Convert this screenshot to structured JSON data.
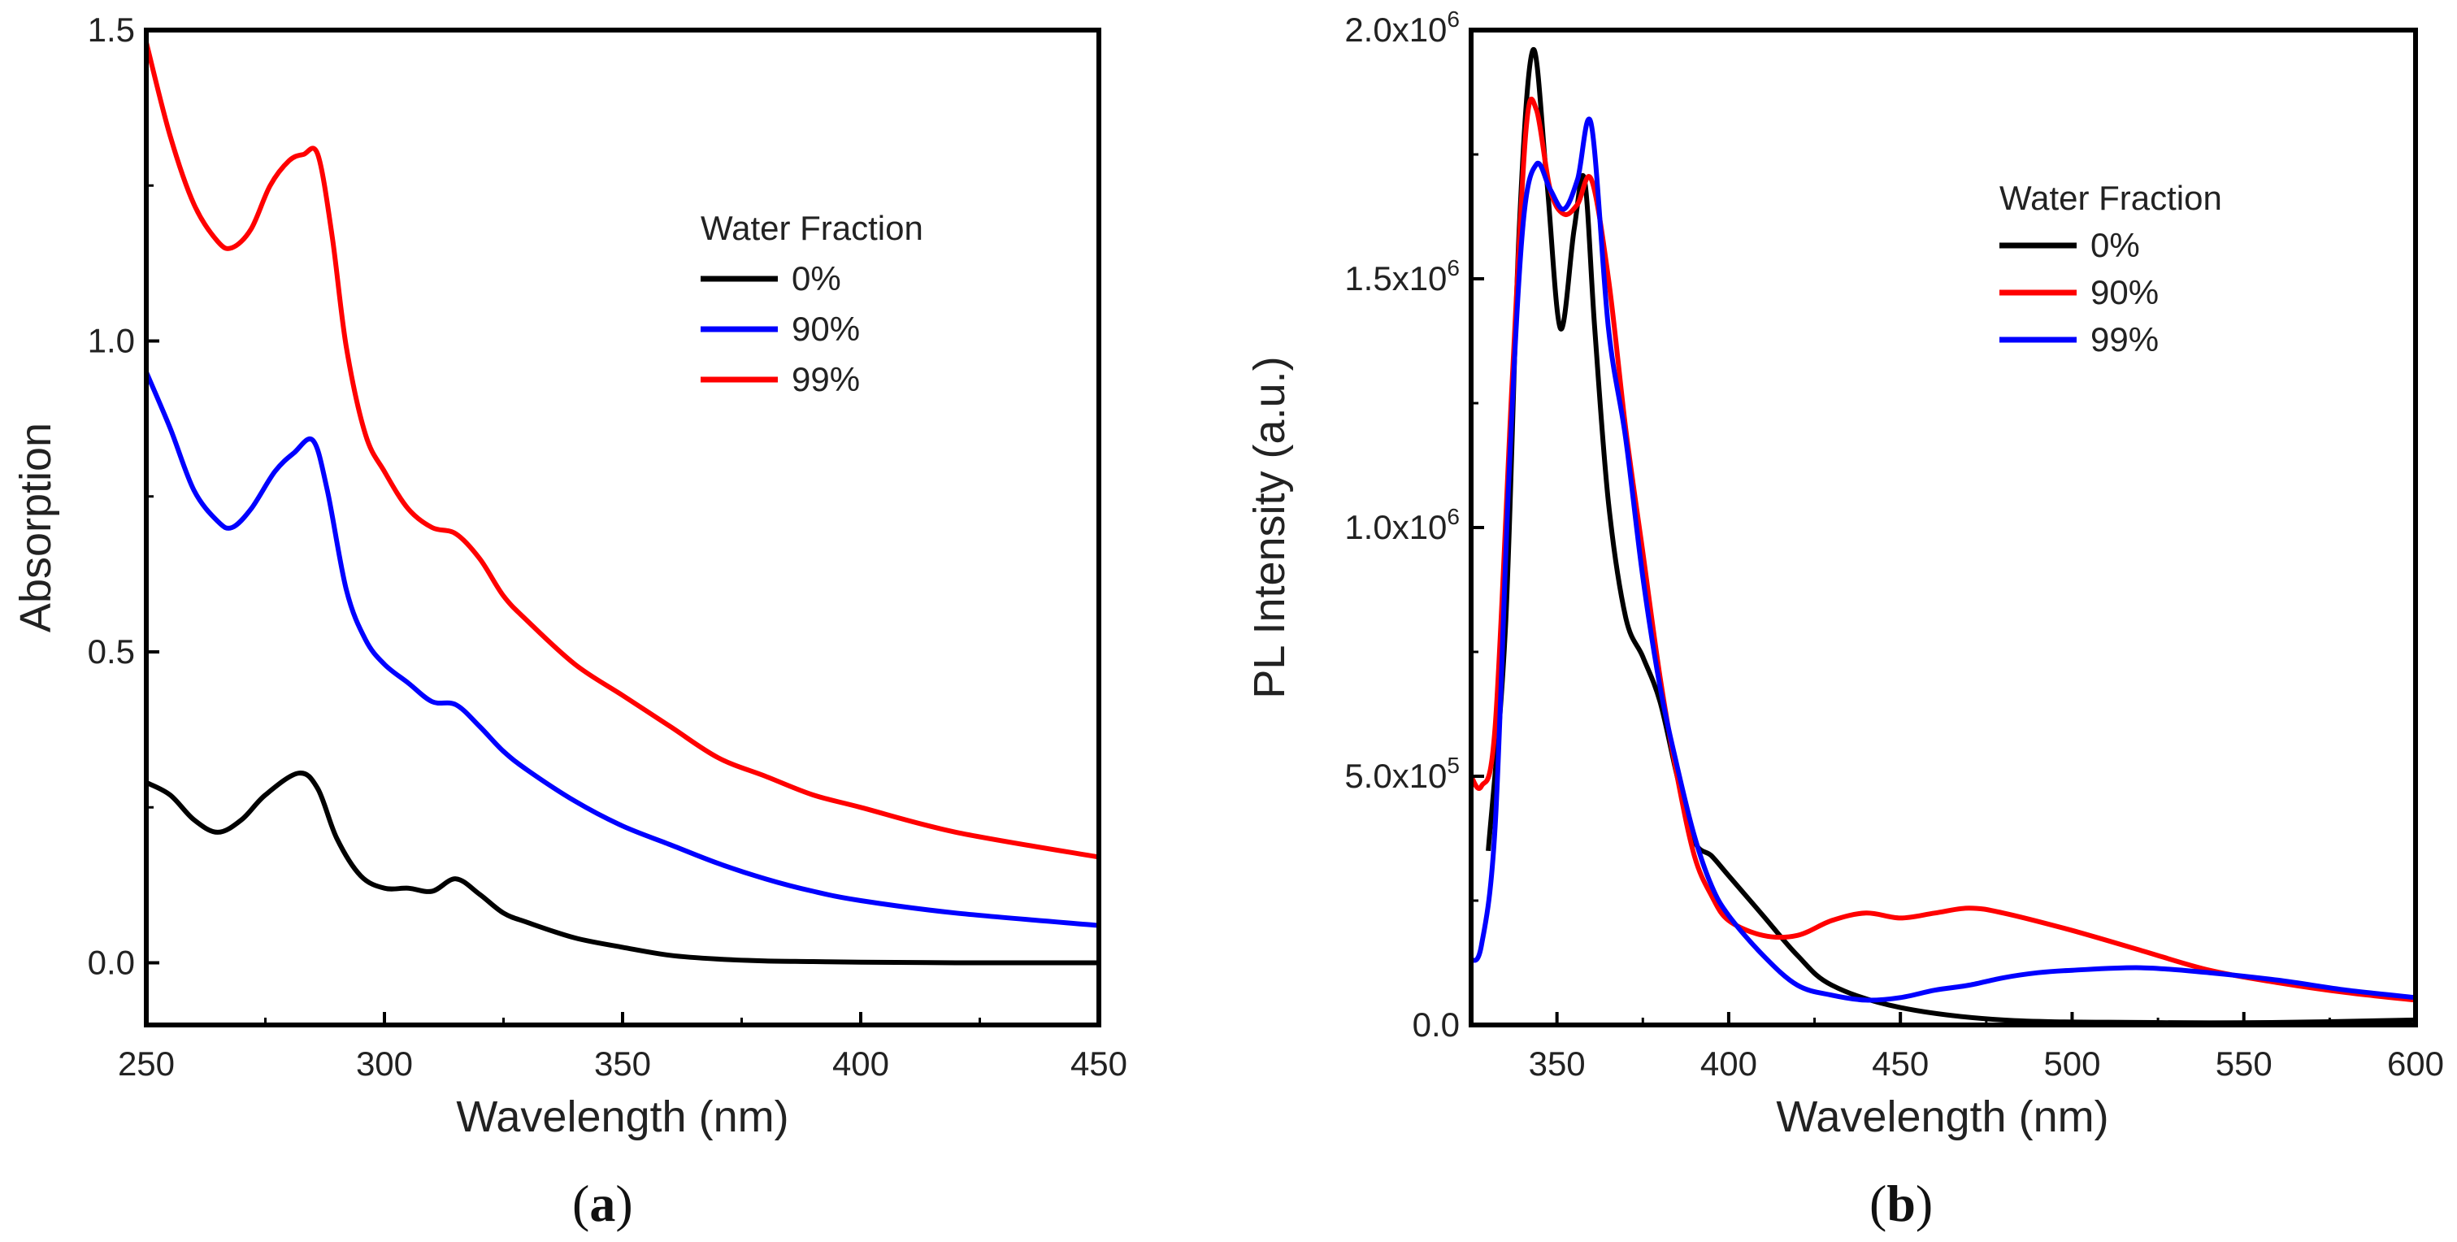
{
  "chart_data": [
    {
      "panel": "a",
      "type": "line",
      "xlabel": "Wavelength (nm)",
      "ylabel": "Absorption",
      "xlim": [
        250,
        450
      ],
      "ylim": [
        -0.1,
        1.5
      ],
      "xticks": [
        250,
        300,
        350,
        400,
        450
      ],
      "xtick_labels": [
        "250",
        "300",
        "350",
        "400",
        "450"
      ],
      "yticks": [
        0.0,
        0.5,
        1.0,
        1.5
      ],
      "ytick_labels": [
        "0.0",
        "0.5",
        "1.0",
        "1.5"
      ],
      "grid": false,
      "legend": {
        "title": "Water Fraction",
        "placement": "top-right",
        "entries": [
          {
            "label": "0%",
            "color": "#000000"
          },
          {
            "label": "90%",
            "color": "#0000ff"
          },
          {
            "label": "99%",
            "color": "#ff0000"
          }
        ]
      },
      "series": [
        {
          "name": "0%",
          "color": "#000000",
          "x": [
            250,
            255,
            260,
            265,
            270,
            275,
            282,
            286,
            290,
            295,
            300,
            305,
            310,
            315,
            320,
            325,
            330,
            340,
            350,
            360,
            370,
            380,
            390,
            400,
            420,
            450
          ],
          "y": [
            0.29,
            0.27,
            0.23,
            0.21,
            0.23,
            0.27,
            0.305,
            0.28,
            0.2,
            0.14,
            0.12,
            0.12,
            0.115,
            0.135,
            0.11,
            0.08,
            0.065,
            0.04,
            0.025,
            0.012,
            0.006,
            0.003,
            0.002,
            0.001,
            0.0,
            0.0
          ]
        },
        {
          "name": "90%",
          "color": "#0000ff",
          "x": [
            250,
            255,
            260,
            265,
            268,
            272,
            277,
            281,
            285,
            288,
            292,
            296,
            300,
            305,
            310,
            315,
            320,
            325,
            330,
            340,
            350,
            360,
            370,
            380,
            390,
            400,
            420,
            450
          ],
          "y": [
            0.95,
            0.86,
            0.76,
            0.71,
            0.7,
            0.73,
            0.79,
            0.82,
            0.84,
            0.76,
            0.6,
            0.52,
            0.48,
            0.45,
            0.42,
            0.415,
            0.38,
            0.34,
            0.31,
            0.26,
            0.22,
            0.19,
            0.16,
            0.135,
            0.115,
            0.1,
            0.08,
            0.06
          ]
        },
        {
          "name": "99%",
          "color": "#ff0000",
          "x": [
            250,
            255,
            260,
            265,
            268,
            272,
            276,
            280,
            283,
            286,
            289,
            292,
            296,
            300,
            305,
            310,
            315,
            320,
            325,
            330,
            340,
            350,
            360,
            370,
            380,
            390,
            400,
            420,
            450
          ],
          "y": [
            1.48,
            1.33,
            1.22,
            1.16,
            1.15,
            1.18,
            1.25,
            1.29,
            1.3,
            1.3,
            1.17,
            0.99,
            0.85,
            0.79,
            0.73,
            0.7,
            0.69,
            0.65,
            0.59,
            0.55,
            0.48,
            0.43,
            0.38,
            0.33,
            0.3,
            0.27,
            0.25,
            0.21,
            0.17
          ]
        }
      ]
    },
    {
      "panel": "b",
      "type": "line",
      "xlabel": "Wavelength (nm)",
      "ylabel": "PL Intensity (a.u.)",
      "xlim": [
        325,
        600
      ],
      "ylim": [
        0,
        2000000
      ],
      "xticks": [
        350,
        400,
        450,
        500,
        550,
        600
      ],
      "xtick_labels": [
        "350",
        "400",
        "450",
        "500",
        "550",
        "600"
      ],
      "yticks": [
        0,
        500000,
        1000000,
        1500000,
        2000000
      ],
      "ytick_labels": [
        {
          "mantissa": "0.0",
          "exp": ""
        },
        {
          "mantissa": "5.0x10",
          "exp": "5"
        },
        {
          "mantissa": "1.0x10",
          "exp": "6"
        },
        {
          "mantissa": "1.5x10",
          "exp": "6"
        },
        {
          "mantissa": "2.0x10",
          "exp": "6"
        }
      ],
      "grid": false,
      "legend": {
        "title": "Water Fraction",
        "placement": "top-right",
        "entries": [
          {
            "label": "0%",
            "color": "#000000"
          },
          {
            "label": "90%",
            "color": "#ff0000"
          },
          {
            "label": "99%",
            "color": "#0000ff"
          }
        ]
      },
      "series": [
        {
          "name": "0%",
          "color": "#000000",
          "x": [
            330,
            335,
            339,
            343,
            347,
            351,
            355,
            358,
            361,
            365,
            370,
            375,
            380,
            385,
            390,
            395,
            400,
            410,
            420,
            430,
            450,
            480,
            520,
            560,
            600
          ],
          "y": [
            350000,
            800000,
            1600000,
            1960000,
            1700000,
            1400000,
            1600000,
            1700000,
            1400000,
            1050000,
            820000,
            740000,
            650000,
            500000,
            370000,
            340000,
            300000,
            220000,
            140000,
            80000,
            35000,
            10000,
            5000,
            5000,
            10000
          ]
        },
        {
          "name": "90%",
          "color": "#ff0000",
          "x": [
            325,
            328,
            332,
            337,
            341,
            344,
            348,
            352,
            356,
            360,
            365,
            370,
            375,
            380,
            385,
            390,
            395,
            400,
            410,
            420,
            430,
            440,
            450,
            460,
            470,
            480,
            500,
            520,
            540,
            560,
            580,
            600
          ],
          "y": [
            500000,
            480000,
            600000,
            1300000,
            1800000,
            1840000,
            1680000,
            1630000,
            1650000,
            1700000,
            1500000,
            1200000,
            950000,
            700000,
            500000,
            340000,
            260000,
            210000,
            180000,
            180000,
            210000,
            225000,
            215000,
            225000,
            235000,
            225000,
            190000,
            150000,
            110000,
            85000,
            65000,
            50000
          ]
        },
        {
          "name": "99%",
          "color": "#0000ff",
          "x": [
            325,
            328,
            332,
            336,
            340,
            344,
            348,
            352,
            356,
            360,
            365,
            370,
            375,
            380,
            385,
            390,
            395,
            400,
            410,
            420,
            430,
            440,
            450,
            460,
            470,
            480,
            490,
            500,
            520,
            540,
            560,
            580,
            600
          ],
          "y": [
            130000,
            160000,
            400000,
            1100000,
            1600000,
            1730000,
            1680000,
            1640000,
            1700000,
            1810000,
            1400000,
            1180000,
            900000,
            680000,
            520000,
            380000,
            280000,
            220000,
            140000,
            80000,
            60000,
            50000,
            55000,
            70000,
            80000,
            95000,
            105000,
            110000,
            115000,
            105000,
            90000,
            70000,
            55000
          ]
        }
      ]
    }
  ],
  "captions": {
    "a": {
      "open": "(",
      "letter": "a",
      "close": ")"
    },
    "b": {
      "open": "(",
      "letter": "b",
      "close": ")"
    }
  }
}
